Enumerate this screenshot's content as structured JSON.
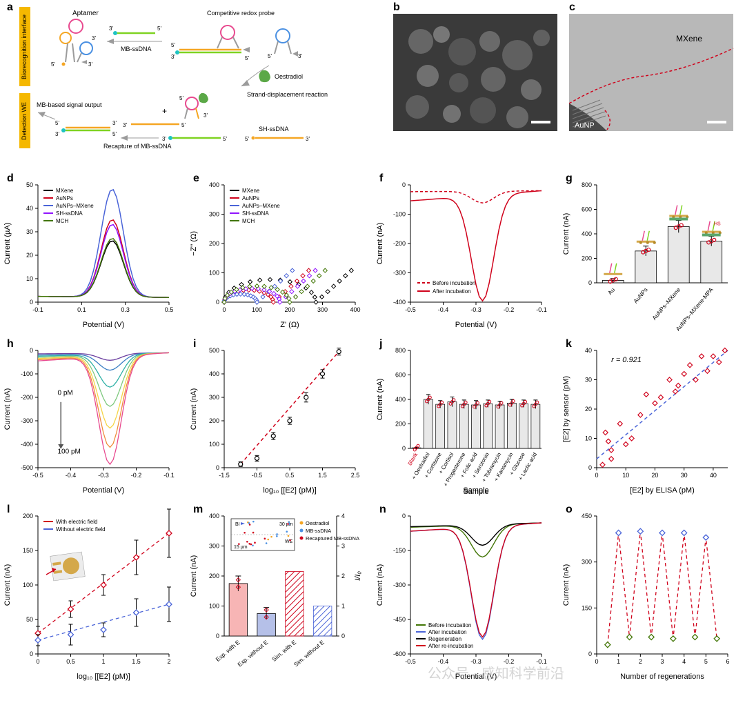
{
  "panel_a": {
    "label": "a",
    "tab1": "Biorecognition interface",
    "tab2": "Detection WE",
    "text_aptamer": "Aptamer",
    "text_mb_ssdna": "MB-ssDNA",
    "text_comp_redox": "Competitive redox probe",
    "text_oestradiol": "Oestradiol",
    "text_strand_disp": "Strand-displacement reaction",
    "text_mb_output": "MB-based signal output",
    "text_recapture": "Recapture of MB-ssDNA",
    "text_sh_ssdna": "SH-ssDNA",
    "marks_5": "5'",
    "marks_3": "3'",
    "colors": {
      "orange": "#f5a623",
      "green": "#7ed321",
      "pink": "#e84a8f",
      "blue": "#4a90e2",
      "grey": "#9b9b9b",
      "teal_mb": "#1ec3c3",
      "green_oest": "#5ba847"
    }
  },
  "panel_b": {
    "label": "b"
  },
  "panel_c": {
    "label": "c",
    "text_mxene": "MXene",
    "text_aunp": "AuNP"
  },
  "panel_d": {
    "label": "d",
    "xlabel": "Potential (V)",
    "ylabel": "Current (µA)",
    "xlim": [
      -0.1,
      0.5
    ],
    "xticks": [
      -0.1,
      0.1,
      0.3,
      0.5
    ],
    "ylim": [
      0,
      50
    ],
    "yticks": [
      0,
      10,
      20,
      30,
      40,
      50
    ],
    "legend": [
      "MXene",
      "AuNPs",
      "AuNPs–MXene",
      "SH-ssDNA",
      "MCH"
    ],
    "colors": [
      "#000000",
      "#d0021b",
      "#4a64d8",
      "#9013fe",
      "#417505"
    ],
    "peak_x": 0.24,
    "peak_heights": [
      26,
      35,
      48,
      33,
      27
    ],
    "bg": "#ffffff",
    "grid": "#000000"
  },
  "panel_e": {
    "label": "e",
    "xlabel": "Z' (Ω)",
    "ylabel": "−Z'' (Ω)",
    "xlim": [
      0,
      400
    ],
    "xticks": [
      0,
      100,
      200,
      300,
      400
    ],
    "ylim": [
      0,
      400
    ],
    "yticks": [
      0,
      100,
      200,
      300,
      400
    ],
    "legend": [
      "MXene",
      "AuNPs",
      "AuNPs–MXene",
      "SH-ssDNA",
      "MCH"
    ],
    "colors": [
      "#000000",
      "#d0021b",
      "#4a64d8",
      "#9013fe",
      "#417505"
    ],
    "semicircle_diam": [
      280,
      150,
      100,
      170,
      200
    ],
    "bg": "#ffffff"
  },
  "panel_f": {
    "label": "f",
    "xlabel": "Potential (V)",
    "ylabel": "Current (nA)",
    "xlim": [
      -0.5,
      -0.1
    ],
    "xticks": [
      -0.5,
      -0.4,
      -0.3,
      -0.2,
      -0.1
    ],
    "ylim": [
      -400,
      0
    ],
    "yticks": [
      -400,
      -300,
      -200,
      -100,
      0
    ],
    "legend": [
      "Before incubation",
      "After incubation"
    ],
    "colors": [
      "#d0021b",
      "#d0021b"
    ],
    "styles": [
      "dashed",
      "solid"
    ],
    "peak_x": -0.28,
    "depths": [
      -60,
      -380
    ]
  },
  "panel_g": {
    "label": "g",
    "xlabel": "",
    "ylabel": "Current (nA)",
    "ylim": [
      0,
      800
    ],
    "yticks": [
      0,
      200,
      400,
      600,
      800
    ],
    "categories": [
      "Au",
      "AuNPs",
      "AuNPs–MXene",
      "AuNPs–MXene-MPA"
    ],
    "values": [
      20,
      260,
      460,
      340
    ],
    "errors": [
      15,
      40,
      50,
      40
    ],
    "bar_fill": "#e8e8e8",
    "bar_stroke": "#000000",
    "point_color": "#d0021b"
  },
  "panel_h": {
    "label": "h",
    "xlabel": "Potential (V)",
    "ylabel": "Current (nA)",
    "xlim": [
      -0.5,
      -0.1
    ],
    "xticks": [
      -0.5,
      -0.4,
      -0.3,
      -0.2,
      -0.1
    ],
    "ylim": [
      -500,
      0
    ],
    "yticks": [
      -500,
      -400,
      -300,
      -200,
      -100,
      0
    ],
    "annot_top": "0 pM",
    "annot_bot": "100 pM",
    "colors": [
      "#6b3fa0",
      "#3a7fc4",
      "#2db0a5",
      "#7fc97f",
      "#f5d547",
      "#f08c3c",
      "#e84a8f"
    ],
    "depths": [
      -40,
      -80,
      -150,
      -230,
      -320,
      -400,
      -470
    ],
    "peak_x": -0.28
  },
  "panel_i": {
    "label": "i",
    "xlabel": "log₁₀ [[E2] (pM)]",
    "ylabel": "Current (nA)",
    "xlim": [
      -1.5,
      2.5
    ],
    "xticks": [
      -1.5,
      -0.5,
      0.5,
      1.5,
      2.5
    ],
    "ylim": [
      0,
      500
    ],
    "yticks": [
      0,
      100,
      200,
      300,
      400,
      500
    ],
    "points_x": [
      -1.0,
      -0.5,
      0.0,
      0.5,
      1.0,
      1.5,
      2.0
    ],
    "points_y": [
      15,
      40,
      135,
      200,
      300,
      400,
      495
    ],
    "errors": [
      10,
      12,
      15,
      15,
      20,
      18,
      15
    ],
    "fit_color": "#d0021b",
    "marker_color": "#000000"
  },
  "panel_j": {
    "label": "j",
    "xlabel": "Sample",
    "ylabel": "Current (nA)",
    "ylim": [
      0,
      800
    ],
    "yticks": [
      0,
      200,
      400,
      600,
      800
    ],
    "categories": [
      "Blank",
      "+ Oestradiol",
      "+ Cortisone",
      "+ Cortisol",
      "+ Progesterone",
      "+ Folic acid",
      "+ Serotonin",
      "+ Tobramycin",
      "+ Kanamycin",
      "+ Glucose",
      "+ Lactic acid"
    ],
    "values": [
      5,
      400,
      360,
      380,
      360,
      355,
      365,
      355,
      370,
      365,
      360
    ],
    "errors": [
      3,
      40,
      30,
      40,
      35,
      35,
      30,
      30,
      30,
      30,
      35
    ],
    "bar_fill": "#e8e8e8",
    "point_color": "#d0021b",
    "blank_label_color": "#d0021b"
  },
  "panel_k": {
    "label": "k",
    "xlabel": "[E2] by ELISA (pM)",
    "ylabel": "[E2] by sensor (pM)",
    "xlim": [
      0,
      45
    ],
    "xticks": [
      0,
      10,
      20,
      30,
      40
    ],
    "ylim": [
      0,
      40
    ],
    "yticks": [
      0,
      10,
      20,
      30,
      40
    ],
    "r_text": "r = 0.921",
    "fit_color": "#4a64d8",
    "marker_color": "#d0021b",
    "points": [
      [
        2,
        1
      ],
      [
        3,
        12
      ],
      [
        4,
        9
      ],
      [
        5,
        3
      ],
      [
        5,
        6
      ],
      [
        8,
        15
      ],
      [
        10,
        8
      ],
      [
        12,
        10
      ],
      [
        15,
        18
      ],
      [
        17,
        25
      ],
      [
        20,
        22
      ],
      [
        22,
        24
      ],
      [
        25,
        30
      ],
      [
        27,
        26
      ],
      [
        28,
        28
      ],
      [
        30,
        32
      ],
      [
        32,
        35
      ],
      [
        34,
        30
      ],
      [
        36,
        38
      ],
      [
        38,
        33
      ],
      [
        40,
        38
      ],
      [
        42,
        36
      ],
      [
        44,
        40
      ]
    ]
  },
  "panel_l": {
    "label": "l",
    "xlabel": "log₁₀ [[E2] (pM)]",
    "ylabel": "Current (nA)",
    "xlim": [
      0,
      2.0
    ],
    "xticks": [
      0,
      0.5,
      1.0,
      1.5,
      2.0
    ],
    "ylim": [
      0,
      200
    ],
    "yticks": [
      0,
      50,
      100,
      150,
      200
    ],
    "legend": [
      "With electric field",
      "Without electric field"
    ],
    "colors": [
      "#d0021b",
      "#4a64d8"
    ],
    "series1_x": [
      0,
      0.5,
      1.0,
      1.5,
      2.0
    ],
    "series1_y": [
      30,
      65,
      100,
      140,
      175
    ],
    "series1_e": [
      10,
      12,
      15,
      25,
      35
    ],
    "series2_x": [
      0,
      0.5,
      1.0,
      1.5,
      2.0
    ],
    "series2_y": [
      20,
      28,
      35,
      60,
      72
    ],
    "series2_e": [
      8,
      15,
      10,
      20,
      25
    ]
  },
  "panel_m": {
    "label": "m",
    "xlabel": "",
    "ylabel": "Current (nA)",
    "ylabel2": "I/I₀",
    "ylim": [
      0,
      400
    ],
    "yticks": [
      0,
      100,
      200,
      300,
      400
    ],
    "ylim2": [
      0,
      4
    ],
    "yticks2": [
      0,
      1,
      2,
      3,
      4
    ],
    "categories": [
      "Exp. with E",
      "Exp. without E",
      "Sim. with E",
      "Sim. without E"
    ],
    "values": [
      175,
      75,
      215,
      100
    ],
    "errors": [
      25,
      20,
      0,
      0
    ],
    "fills": [
      "#f7b5b5",
      "#b5c0e8",
      "#ffffff",
      "#ffffff"
    ],
    "hatches": [
      "none",
      "none",
      "#d0021b",
      "#4a64d8"
    ],
    "inset_labels": [
      "BI",
      "WE",
      "30 µm",
      "15 µm"
    ],
    "inset_legend": [
      "Oestradiol",
      "MB-ssDNA",
      "Recaptured MB-ssDNA"
    ],
    "inset_colors": [
      "#f5a623",
      "#4a90e2",
      "#d0021b"
    ]
  },
  "panel_n": {
    "label": "n",
    "xlabel": "Potential (V)",
    "ylabel": "Current (nA)",
    "xlim": [
      -0.5,
      -0.1
    ],
    "xticks": [
      -0.5,
      -0.4,
      -0.3,
      -0.2,
      -0.1
    ],
    "ylim": [
      -600,
      0
    ],
    "yticks": [
      -600,
      -450,
      -300,
      -150,
      0
    ],
    "legend": [
      "Before incubation",
      "After incubation",
      "Regeneration",
      "After re-incubation"
    ],
    "colors": [
      "#417505",
      "#4a64d8",
      "#000000",
      "#d0021b"
    ],
    "depths": [
      -170,
      -520,
      -120,
      -510
    ],
    "peak_x": -0.28
  },
  "panel_o": {
    "label": "o",
    "xlabel": "Number of regenerations",
    "ylabel": "Current (nA)",
    "xlim": [
      0,
      6
    ],
    "xticks": [
      0,
      1,
      2,
      3,
      4,
      5,
      6
    ],
    "ylim": [
      0,
      450
    ],
    "yticks": [
      0,
      150,
      300,
      450
    ],
    "hi_color": "#4a64d8",
    "lo_color": "#417505",
    "line_color": "#d0021b",
    "points_x": [
      0.5,
      1.0,
      1.5,
      2.0,
      2.5,
      3.0,
      3.5,
      4.0,
      4.5,
      5.0,
      5.5
    ],
    "points_y": [
      30,
      395,
      55,
      400,
      55,
      395,
      50,
      395,
      55,
      380,
      50
    ],
    "is_high": [
      0,
      1,
      0,
      1,
      0,
      1,
      0,
      1,
      0,
      1,
      0
    ]
  },
  "watermark": "公众号 · 感知科学前沿",
  "global": {
    "axis_color": "#000000",
    "bg": "#ffffff",
    "font_axis": 11,
    "font_tick": 9
  }
}
